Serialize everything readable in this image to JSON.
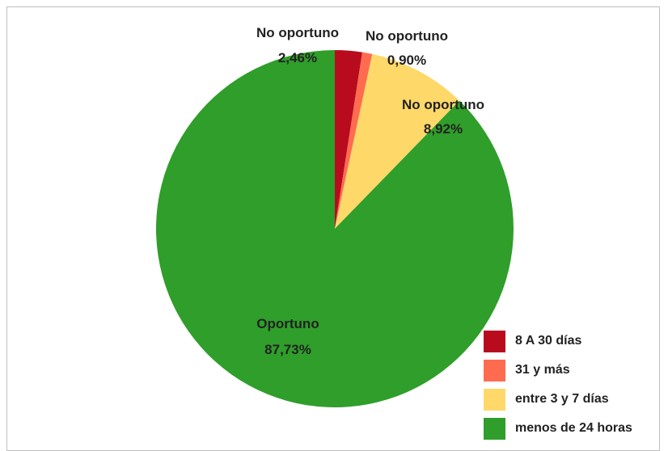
{
  "chart_data": {
    "type": "pie",
    "categories": [
      "8 A 30 días",
      "31 y más",
      "entre 3 y 7 días",
      "menos de 24 horas"
    ],
    "values": [
      2.46,
      0.9,
      8.92,
      87.73
    ],
    "slice_labels": [
      {
        "name": "No oportuno",
        "value": "2,46%"
      },
      {
        "name": "No oportuno",
        "value": "0,90%"
      },
      {
        "name": "No oportuno",
        "value": "8,92%"
      },
      {
        "name": "Oportuno",
        "value": "87,73%"
      }
    ],
    "colors": [
      "#b90b1e",
      "#ff6b4f",
      "#ffd86a",
      "#2f9e2a"
    ],
    "legend": [
      "8 A 30 días",
      "31 y más",
      "entre 3 y 7 días",
      "menos de 24 horas"
    ],
    "legend_position": "bottom-right"
  }
}
